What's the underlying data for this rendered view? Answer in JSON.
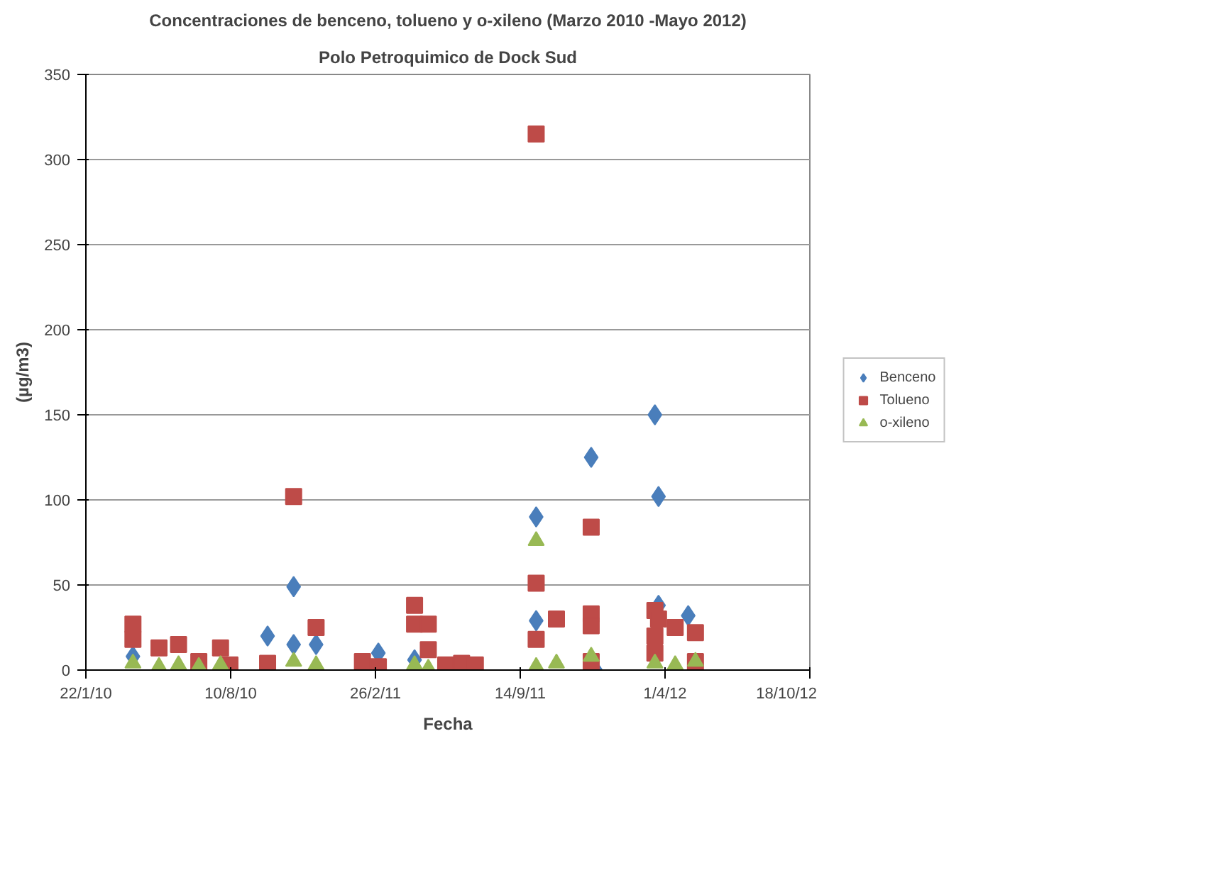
{
  "chart_data": {
    "type": "scatter",
    "title": "Concentraciones de benceno, tolueno y o-xileno (Marzo 2010 -Mayo 2012)",
    "subtitle": "Polo Petroquimico de Dock Sud",
    "xlabel": "Fecha",
    "ylabel": "(µg/m3)",
    "xlim": [
      "2010-01-22",
      "2012-10-18"
    ],
    "xticks": [
      {
        "value": "2010-01-22",
        "label": "22/1/10"
      },
      {
        "value": "2010-08-10",
        "label": "10/8/10"
      },
      {
        "value": "2011-02-26",
        "label": "26/2/11"
      },
      {
        "value": "2011-09-14",
        "label": "14/9/11"
      },
      {
        "value": "2012-04-01",
        "label": "1/4/12"
      },
      {
        "value": "2012-10-18",
        "label": "18/10/12"
      }
    ],
    "ylim": [
      0,
      350
    ],
    "yticks": [
      0,
      50,
      100,
      150,
      200,
      250,
      300,
      350
    ],
    "grid": "y",
    "legend": "right",
    "series": [
      {
        "name": "Benceno",
        "color": "#4a7ebb",
        "marker": "diamond",
        "x": [
          "2010-03-28",
          "2010-09-30",
          "2010-11-05",
          "2010-11-05",
          "2010-12-06",
          "2011-03-02",
          "2011-04-21",
          "2011-10-06",
          "2011-10-06",
          "2011-12-21",
          "2011-12-27",
          "2012-03-18",
          "2012-03-23",
          "2012-03-23",
          "2012-05-03"
        ],
        "values": [
          8,
          20,
          49,
          15,
          15,
          10,
          6,
          90,
          29,
          125,
          0,
          150,
          102,
          38,
          32
        ]
      },
      {
        "name": "Tolueno",
        "color": "#be4b48",
        "marker": "square",
        "x": [
          "2010-03-28",
          "2010-03-28",
          "2010-05-03",
          "2010-05-30",
          "2010-06-27",
          "2010-07-27",
          "2010-08-09",
          "2010-09-30",
          "2010-11-05",
          "2010-12-06",
          "2011-02-08",
          "2011-03-02",
          "2011-04-21",
          "2011-04-21",
          "2011-05-10",
          "2011-05-10",
          "2011-06-03",
          "2011-06-25",
          "2011-07-14",
          "2011-10-06",
          "2011-10-06",
          "2011-10-06",
          "2011-11-03",
          "2011-12-21",
          "2011-12-21",
          "2011-12-21",
          "2011-12-21",
          "2012-03-18",
          "2012-03-18",
          "2012-03-18",
          "2012-03-23",
          "2012-04-15",
          "2012-05-13",
          "2012-05-13"
        ],
        "values": [
          27,
          18,
          13,
          15,
          5,
          13,
          3,
          4,
          102,
          25,
          5,
          2,
          38,
          27,
          27,
          12,
          3,
          4,
          3,
          315,
          51,
          18,
          30,
          84,
          33,
          26,
          5,
          35,
          20,
          10,
          30,
          25,
          22,
          5
        ]
      },
      {
        "name": "o-xileno",
        "color": "#98b954",
        "marker": "triangle",
        "x": [
          "2010-03-28",
          "2010-05-03",
          "2010-05-30",
          "2010-06-27",
          "2010-07-27",
          "2010-11-05",
          "2010-12-06",
          "2011-04-21",
          "2011-05-10",
          "2011-10-06",
          "2011-10-06",
          "2011-11-03",
          "2011-12-21",
          "2012-03-18",
          "2012-04-15",
          "2012-05-13"
        ],
        "values": [
          4,
          2,
          3,
          2,
          3,
          5,
          3,
          3,
          1,
          76,
          2,
          4,
          8,
          4,
          3,
          5
        ]
      }
    ]
  }
}
